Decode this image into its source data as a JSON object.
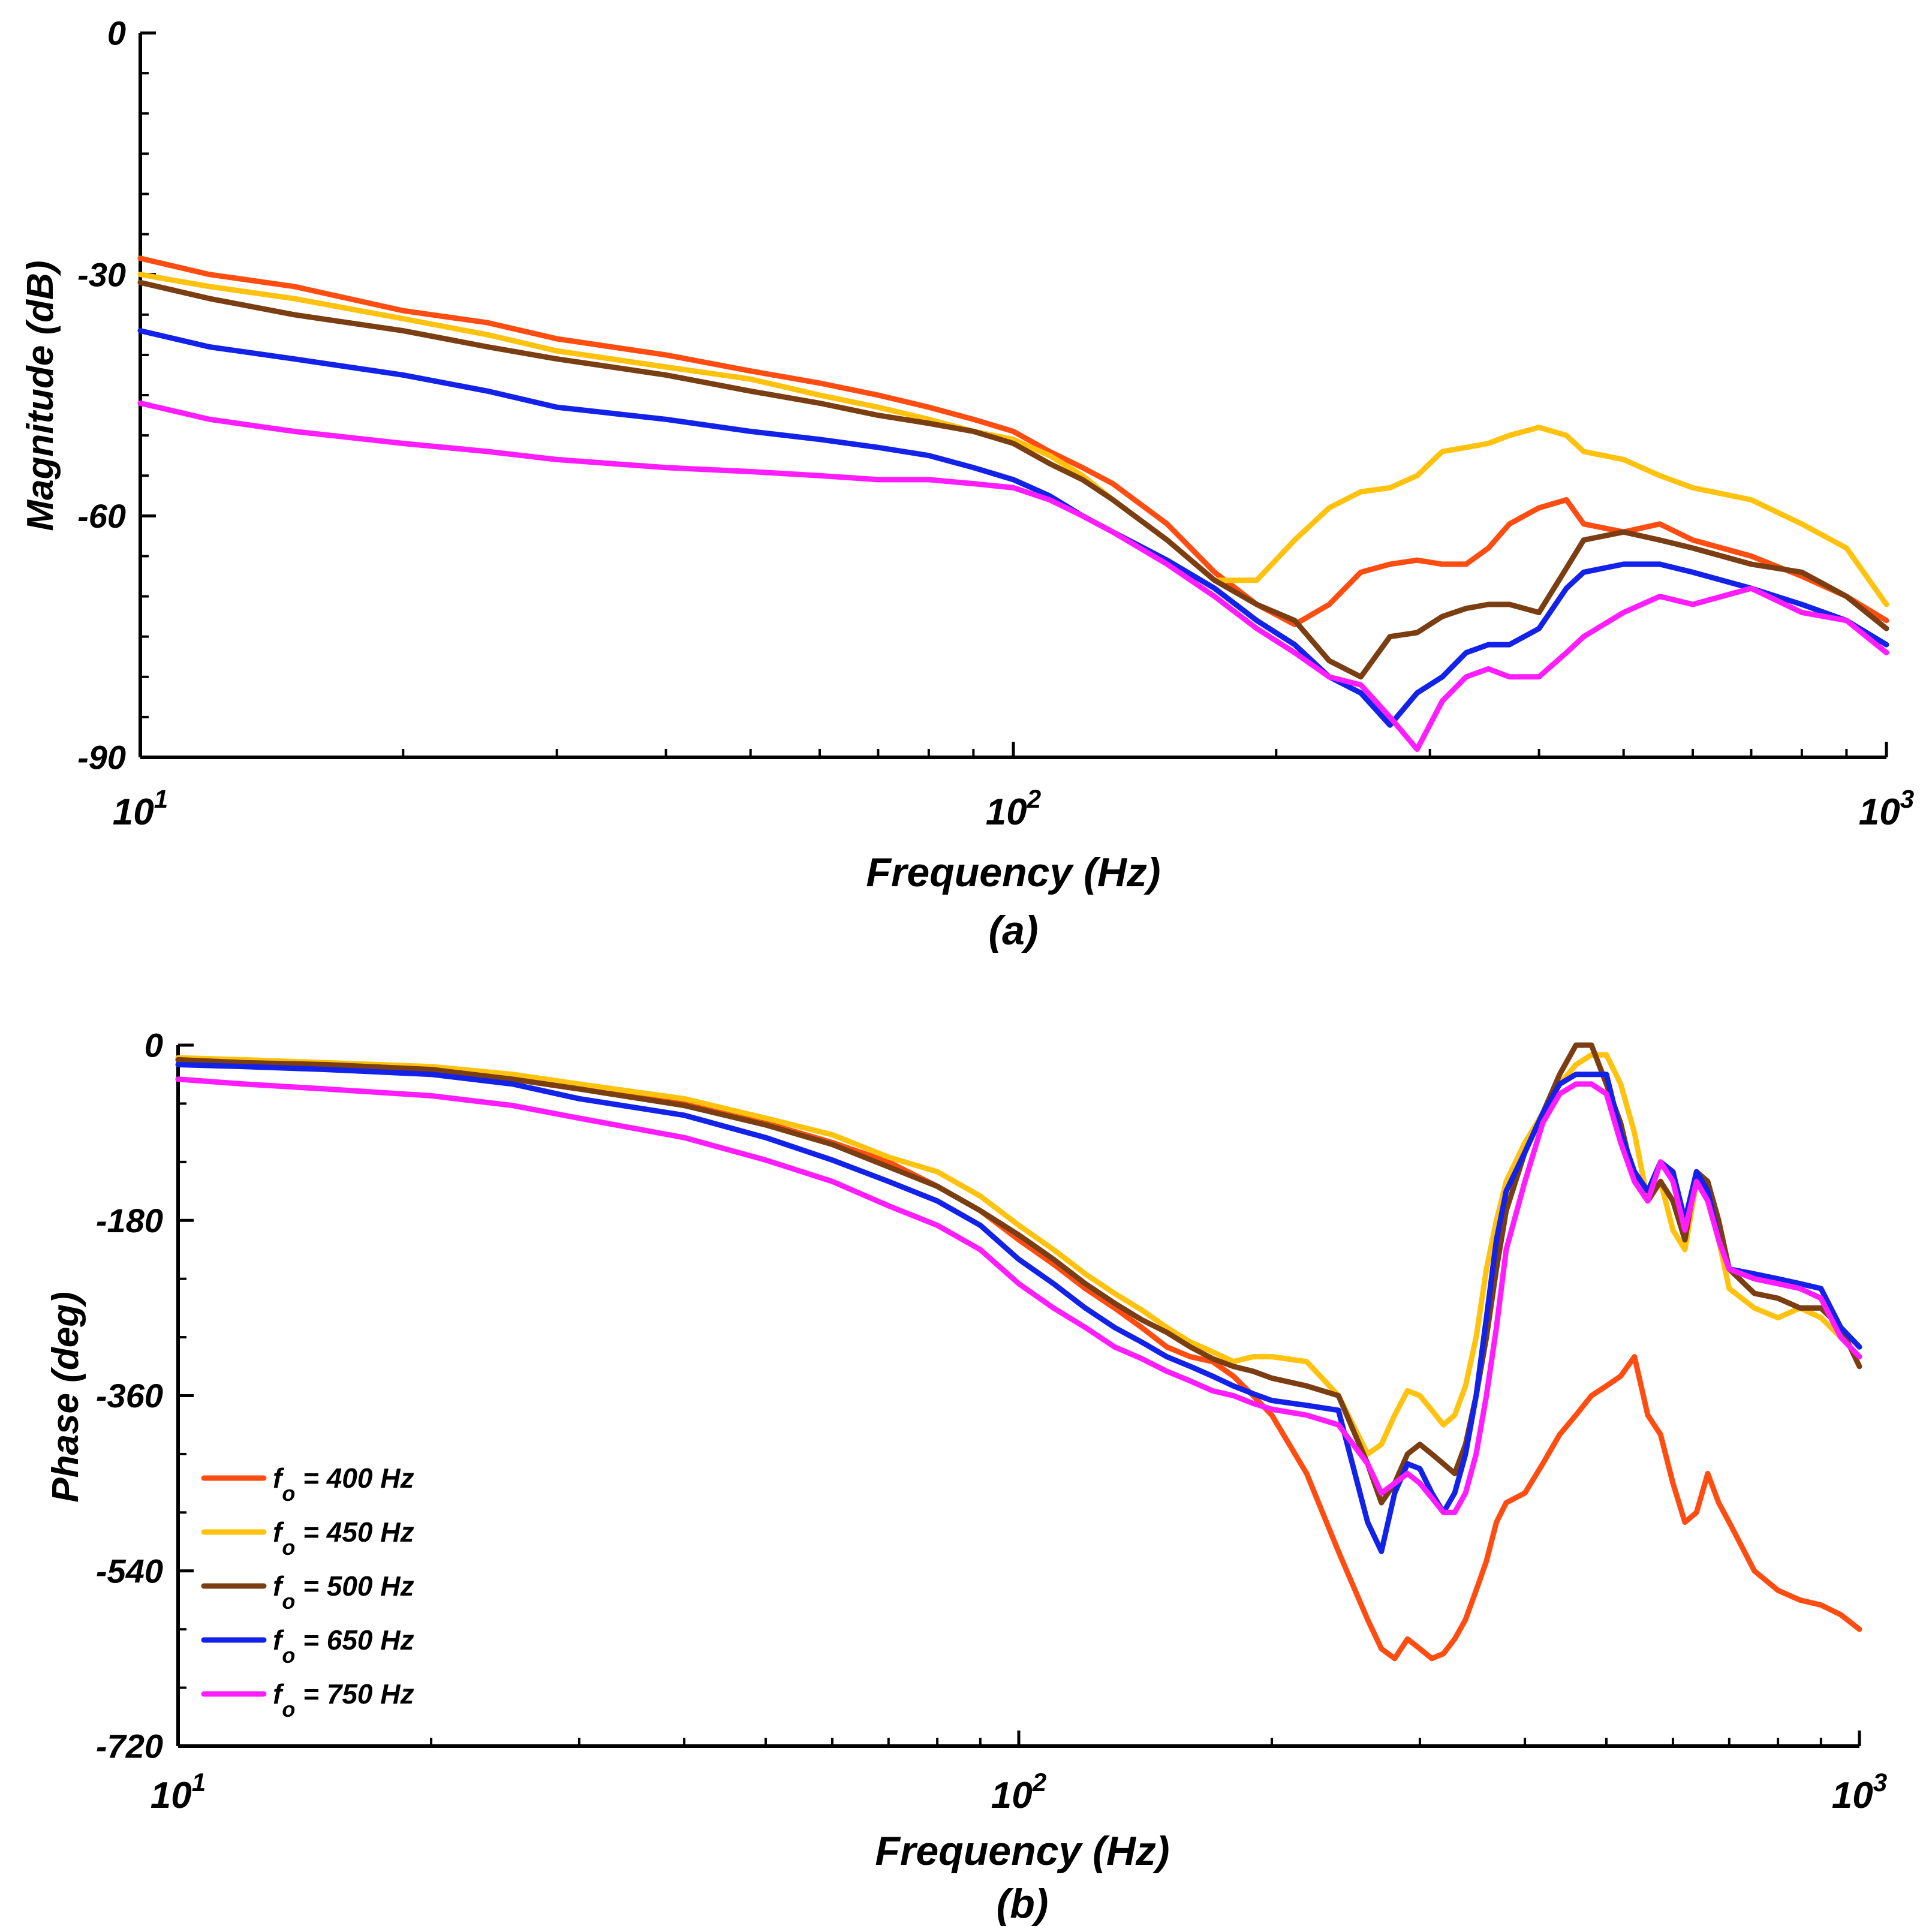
{
  "chart_data": [
    {
      "type": "line",
      "id": "magnitude",
      "xscale": "log",
      "xlim": [
        10,
        1000
      ],
      "ylim": [
        -90,
        0
      ],
      "xlabel": "Frequency (Hz)",
      "ylabel": "Magnitude (dB)",
      "subtitle": "(a)",
      "x_ticks": [
        {
          "base": "10",
          "exp": "1"
        },
        {
          "base": "10",
          "exp": "2"
        },
        {
          "base": "10",
          "exp": "3"
        }
      ],
      "y_ticks": [
        "0",
        "-30",
        "-60",
        "-90"
      ],
      "x": [
        10,
        12,
        15,
        20,
        25,
        30,
        40,
        50,
        60,
        70,
        80,
        90,
        100,
        110,
        120,
        130,
        150,
        170,
        190,
        210,
        230,
        250,
        270,
        290,
        310,
        330,
        350,
        370,
        400,
        430,
        450,
        500,
        550,
        600,
        700,
        800,
        900,
        1000
      ],
      "series": [
        {
          "name": "fo = 400 Hz",
          "color": "#ff4d12",
          "values": [
            -28,
            -30,
            -31.5,
            -34.5,
            -36,
            -38,
            -40,
            -42,
            -43.5,
            -45,
            -46.5,
            -48,
            -49.5,
            -52,
            -54,
            -56,
            -61,
            -67,
            -71,
            -73.5,
            -71,
            -67,
            -66,
            -65.5,
            -66,
            -66,
            -64,
            -61,
            -59,
            -58,
            -61,
            -62,
            -61,
            -63,
            -65,
            -67.5,
            -70,
            -73
          ]
        },
        {
          "name": "fo = 450 Hz",
          "color": "#ffc20e",
          "values": [
            -30,
            -31.5,
            -33,
            -35.5,
            -37.5,
            -39.5,
            -41.5,
            -43,
            -45,
            -46.5,
            -48,
            -49.5,
            -50.5,
            -52.5,
            -55,
            -58,
            -63,
            -68,
            -68,
            -63,
            -59,
            -57,
            -56.5,
            -55,
            -52,
            -51.5,
            -51,
            -50,
            -49,
            -50,
            -52,
            -53,
            -55,
            -56.5,
            -58,
            -61,
            -64,
            -71
          ]
        },
        {
          "name": "fo = 500 Hz",
          "color": "#7b3e12",
          "values": [
            -31,
            -33,
            -35,
            -37,
            -39,
            -40.5,
            -42.5,
            -44.5,
            -46,
            -47.5,
            -48.5,
            -49.5,
            -51,
            -53.5,
            -55.5,
            -58,
            -63,
            -68,
            -71,
            -73,
            -78,
            -80,
            -75,
            -74.5,
            -72.5,
            -71.5,
            -71,
            -71,
            -72,
            -66.5,
            -63,
            -62,
            -63,
            -64,
            -66,
            -67,
            -70,
            -74
          ]
        },
        {
          "name": "fo = 650 Hz",
          "color": "#1322e8",
          "values": [
            -37,
            -39,
            -40.5,
            -42.5,
            -44.5,
            -46.5,
            -48,
            -49.5,
            -50.5,
            -51.5,
            -52.5,
            -54,
            -55.5,
            -57.5,
            -60,
            -62,
            -65.5,
            -69,
            -73,
            -76,
            -80,
            -82,
            -86,
            -82,
            -80,
            -77,
            -76,
            -76,
            -74,
            -69,
            -67,
            -66,
            -66,
            -67,
            -69,
            -71,
            -73,
            -76
          ]
        },
        {
          "name": "fo = 750 Hz",
          "color": "#ff1dff",
          "values": [
            -46,
            -48,
            -49.5,
            -51,
            -52,
            -53,
            -54,
            -54.5,
            -55,
            -55.5,
            -55.5,
            -56,
            -56.5,
            -58,
            -60,
            -62,
            -66,
            -70,
            -74,
            -77,
            -80,
            -81,
            -85,
            -89,
            -83,
            -80,
            -79,
            -80,
            -80,
            -77,
            -75,
            -72,
            -70,
            -71,
            -69,
            -72,
            -73,
            -77
          ]
        }
      ]
    },
    {
      "type": "line",
      "id": "phase",
      "xscale": "log",
      "xlim": [
        10,
        1000
      ],
      "ylim": [
        -720,
        0
      ],
      "xlabel": "Frequency (Hz)",
      "ylabel": "Phase (deg)",
      "subtitle": "(b)",
      "x_ticks": [
        {
          "base": "10",
          "exp": "1"
        },
        {
          "base": "10",
          "exp": "2"
        },
        {
          "base": "10",
          "exp": "3"
        }
      ],
      "y_ticks": [
        "0",
        "-180",
        "-360",
        "-540",
        "-720"
      ],
      "x": [
        10,
        12,
        15,
        20,
        25,
        30,
        40,
        50,
        60,
        70,
        80,
        90,
        100,
        110,
        120,
        130,
        140,
        150,
        160,
        170,
        180,
        190,
        200,
        220,
        240,
        260,
        270,
        280,
        290,
        300,
        310,
        320,
        330,
        340,
        350,
        360,
        370,
        380,
        400,
        420,
        440,
        460,
        480,
        500,
        520,
        540,
        560,
        580,
        600,
        620,
        640,
        660,
        680,
        700,
        750,
        800,
        850,
        900,
        950,
        1000
      ],
      "series": [
        {
          "name": "fo = 400 Hz",
          "color": "#ff4d12",
          "values": [
            -15,
            -17,
            -20,
            -25,
            -35,
            -45,
            -60,
            -80,
            -100,
            -120,
            -145,
            -170,
            -200,
            -225,
            -250,
            -270,
            -290,
            -310,
            -320,
            -325,
            -340,
            -360,
            -380,
            -440,
            -520,
            -590,
            -620,
            -630,
            -610,
            -620,
            -630,
            -625,
            -610,
            -590,
            -560,
            -530,
            -490,
            -470,
            -460,
            -430,
            -400,
            -380,
            -360,
            -350,
            -340,
            -320,
            -380,
            -400,
            -450,
            -490,
            -480,
            -440,
            -470,
            -490,
            -540,
            -560,
            -570,
            -575,
            -585,
            -600
          ]
        },
        {
          "name": "fo = 450 Hz",
          "color": "#ffc20e",
          "values": [
            -13,
            -15,
            -18,
            -22,
            -30,
            -40,
            -55,
            -75,
            -92,
            -115,
            -130,
            -155,
            -185,
            -210,
            -235,
            -255,
            -272,
            -290,
            -305,
            -315,
            -325,
            -320,
            -320,
            -325,
            -360,
            -420,
            -410,
            -380,
            -355,
            -360,
            -375,
            -390,
            -380,
            -350,
            -300,
            -230,
            -180,
            -140,
            -100,
            -70,
            -40,
            -20,
            -10,
            -10,
            -40,
            -90,
            -160,
            -140,
            -190,
            -210,
            -140,
            -150,
            -200,
            -250,
            -270,
            -280,
            -270,
            -280,
            -300,
            -320
          ]
        },
        {
          "name": "fo = 500 Hz",
          "color": "#7b3e12",
          "values": [
            -15,
            -18,
            -20,
            -25,
            -35,
            -45,
            -62,
            -82,
            -102,
            -125,
            -145,
            -170,
            -195,
            -220,
            -245,
            -265,
            -282,
            -295,
            -310,
            -322,
            -330,
            -335,
            -342,
            -350,
            -360,
            -430,
            -470,
            -450,
            -420,
            -410,
            -420,
            -430,
            -440,
            -410,
            -360,
            -300,
            -230,
            -170,
            -110,
            -70,
            -30,
            0,
            0,
            -40,
            -80,
            -140,
            -160,
            -140,
            -160,
            -200,
            -130,
            -140,
            -180,
            -230,
            -255,
            -260,
            -270,
            -270,
            -290,
            -330
          ]
        },
        {
          "name": "fo = 650 Hz",
          "color": "#1322e8",
          "values": [
            -20,
            -22,
            -25,
            -30,
            -40,
            -55,
            -72,
            -95,
            -118,
            -140,
            -160,
            -185,
            -220,
            -245,
            -270,
            -290,
            -305,
            -320,
            -330,
            -340,
            -350,
            -358,
            -365,
            -370,
            -375,
            -490,
            -520,
            -460,
            -430,
            -435,
            -460,
            -480,
            -460,
            -420,
            -360,
            -280,
            -200,
            -150,
            -110,
            -70,
            -40,
            -30,
            -30,
            -30,
            -90,
            -130,
            -150,
            -120,
            -130,
            -180,
            -130,
            -150,
            -200,
            -230,
            -235,
            -240,
            -245,
            -250,
            -290,
            -310
          ]
        },
        {
          "name": "fo = 750 Hz",
          "color": "#ff1dff",
          "values": [
            -35,
            -40,
            -45,
            -52,
            -62,
            -75,
            -95,
            -118,
            -140,
            -165,
            -185,
            -210,
            -245,
            -270,
            -290,
            -310,
            -322,
            -335,
            -345,
            -355,
            -360,
            -368,
            -374,
            -380,
            -390,
            -430,
            -460,
            -450,
            -440,
            -450,
            -465,
            -480,
            -480,
            -460,
            -420,
            -360,
            -290,
            -210,
            -140,
            -80,
            -50,
            -40,
            -40,
            -50,
            -100,
            -140,
            -160,
            -120,
            -140,
            -190,
            -140,
            -160,
            -200,
            -230,
            -240,
            -245,
            -250,
            -260,
            -300,
            -320
          ]
        }
      ]
    }
  ],
  "legend": [
    {
      "var": "f",
      "sub": "o",
      "rest": " = 400 Hz",
      "color": "#ff4d12"
    },
    {
      "var": "f",
      "sub": "o",
      "rest": " = 450 Hz",
      "color": "#ffc20e"
    },
    {
      "var": "f",
      "sub": "o",
      "rest": " = 500 Hz",
      "color": "#7b3e12"
    },
    {
      "var": "f",
      "sub": "o",
      "rest": " = 650 Hz",
      "color": "#1322e8"
    },
    {
      "var": "f",
      "sub": "o",
      "rest": " = 750 Hz",
      "color": "#ff1dff"
    }
  ]
}
